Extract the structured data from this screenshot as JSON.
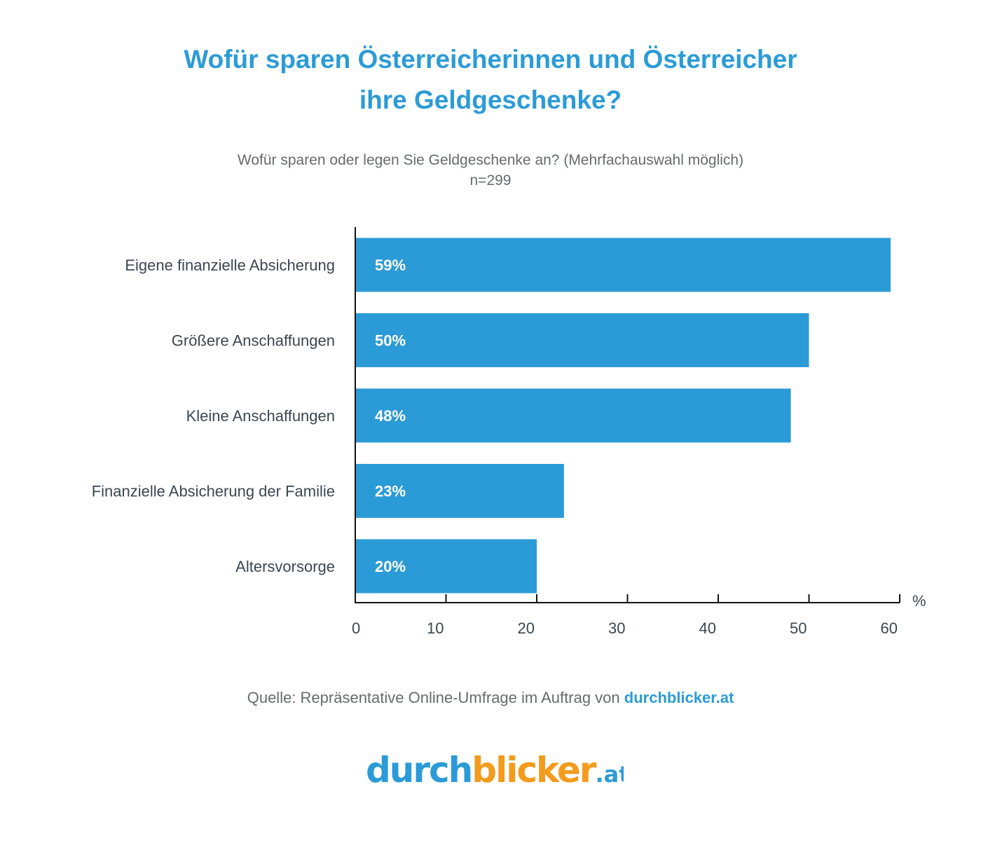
{
  "header": {
    "title_line1": "Wofür sparen Österreicherinnen und Österreicher",
    "title_line2": "ihre Geldgeschenke?",
    "question": "Wofür sparen oder legen Sie Geldgeschenke an? (Mehrfachauswahl möglich)",
    "sample": "n=299"
  },
  "chart_data": {
    "type": "bar",
    "orientation": "horizontal",
    "categories": [
      "Eigene finanzielle Absicherung",
      "Größere Anschaffungen",
      "Kleine Anschaffungen",
      "Finanzielle Absicherung der Familie",
      "Altersvorsorge"
    ],
    "values": [
      59,
      50,
      48,
      23,
      20
    ],
    "value_labels": [
      "59%",
      "50%",
      "48%",
      "23%",
      "20%"
    ],
    "xlim": [
      0,
      60
    ],
    "xticks": [
      0,
      10,
      20,
      30,
      40,
      50,
      60
    ],
    "unit_label": "%",
    "bar_color": "#2b9bd7",
    "grid": false
  },
  "footer": {
    "source_prefix": "Quelle: Repräsentative Online-Umfrage im Auftrag von ",
    "source_brand": "durchblicker.at"
  },
  "logo": {
    "part1": "durch",
    "part2": "blicker",
    "part3": ".at",
    "color_blue": "#2b9bd7",
    "color_orange": "#f39b1c"
  }
}
